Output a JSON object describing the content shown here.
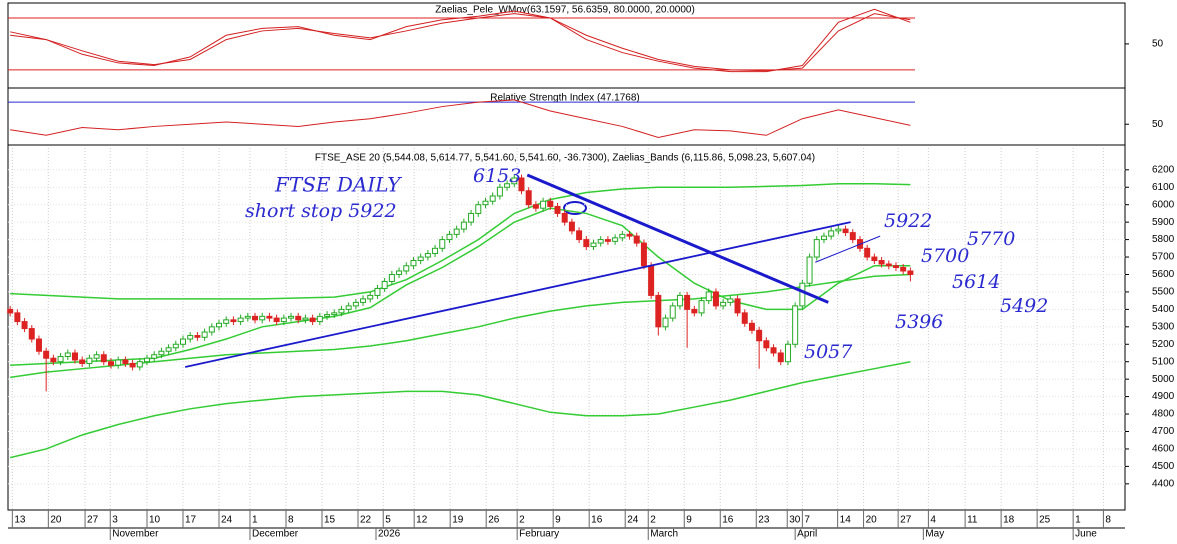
{
  "chart_data": [
    {
      "type": "line",
      "title": "Zaelias_Pele_WMov(63.1597, 56.6359, 80.0000, 20.0000)",
      "ylim": [
        -1,
        95
      ],
      "yticks": [
        50
      ],
      "levels": [
        80,
        20
      ],
      "level_color": "#dd2222",
      "x": [
        0,
        5,
        10,
        15,
        20,
        25,
        30,
        35,
        40,
        45,
        50,
        55,
        60,
        65,
        70,
        75,
        80,
        85,
        90,
        95,
        100,
        105,
        110,
        115,
        120,
        125
      ],
      "series": [
        {
          "color": "#d42020",
          "values": [
            64,
            55,
            38,
            28,
            25,
            35,
            60,
            68,
            70,
            60,
            55,
            70,
            78,
            82,
            88,
            80,
            55,
            40,
            30,
            22,
            18,
            18,
            25,
            75,
            90,
            75
          ]
        },
        {
          "color": "#d42020",
          "values": [
            60,
            55,
            42,
            30,
            26,
            32,
            55,
            65,
            68,
            62,
            57,
            65,
            74,
            80,
            85,
            80,
            60,
            45,
            32,
            24,
            20,
            19,
            22,
            65,
            85,
            78
          ]
        }
      ]
    },
    {
      "type": "line",
      "title": "Relative Strength Index (47.1768)",
      "ylim": [
        33,
        81
      ],
      "yticks": [
        50
      ],
      "levels": [
        70
      ],
      "level_color": "#2a2ad0",
      "x": [
        0,
        5,
        10,
        15,
        20,
        25,
        30,
        35,
        40,
        45,
        50,
        55,
        60,
        65,
        70,
        75,
        80,
        85,
        90,
        95,
        100,
        105,
        110,
        115,
        120,
        125
      ],
      "series": [
        {
          "color": "#d42020",
          "values": [
            45,
            40,
            47,
            45,
            48,
            50,
            52,
            50,
            48,
            52,
            55,
            60,
            66,
            70,
            72,
            62,
            55,
            48,
            38,
            45,
            44,
            40,
            55,
            63,
            56,
            49
          ]
        }
      ]
    },
    {
      "type": "candlestick",
      "title": "FTSE_ASE 20 (5,544.08, 5,614.77, 5,541.60, 5,541.60, -36.7300), Zaelias_Bands (6,115.86, 5,098.23, 5,607.04)",
      "up_color": "#22aa22",
      "down_color": "#dd2222",
      "grid": true,
      "ylim": [
        4250,
        6325
      ],
      "yticks": [
        4400,
        4500,
        4600,
        4700,
        4800,
        4900,
        5000,
        5100,
        5200,
        5300,
        5400,
        5500,
        5600,
        5700,
        5800,
        5900,
        6000,
        6100,
        6200
      ],
      "xlim": [
        -0.3,
        154.8
      ],
      "xticks": [
        {
          "value": 0.3,
          "label": "13"
        },
        {
          "value": 5.3,
          "label": "20"
        },
        {
          "value": 10.4,
          "label": "27"
        },
        {
          "value": 13.9,
          "label": "3"
        },
        {
          "value": 19,
          "label": "10"
        },
        {
          "value": 24,
          "label": "17"
        },
        {
          "value": 29,
          "label": "24"
        },
        {
          "value": 33.3,
          "label": "1"
        },
        {
          "value": 38.3,
          "label": "8"
        },
        {
          "value": 43.3,
          "label": "15"
        },
        {
          "value": 48.3,
          "label": "22"
        },
        {
          "value": 51.8,
          "label": "5"
        },
        {
          "value": 56.1,
          "label": "12"
        },
        {
          "value": 61.1,
          "label": "19"
        },
        {
          "value": 66.1,
          "label": "26"
        },
        {
          "value": 70.4,
          "label": "2"
        },
        {
          "value": 75.4,
          "label": "9"
        },
        {
          "value": 80.4,
          "label": "16"
        },
        {
          "value": 85.4,
          "label": "24"
        },
        {
          "value": 88.6,
          "label": "2"
        },
        {
          "value": 93.6,
          "label": "9"
        },
        {
          "value": 98.6,
          "label": "16"
        },
        {
          "value": 103.6,
          "label": "23"
        },
        {
          "value": 107.9,
          "label": "30"
        },
        {
          "value": 110,
          "label": "7"
        },
        {
          "value": 114.9,
          "label": "14"
        },
        {
          "value": 118.5,
          "label": "20"
        },
        {
          "value": 123.3,
          "label": "27"
        },
        {
          "value": 127.5,
          "label": "4"
        },
        {
          "value": 132.6,
          "label": "11"
        },
        {
          "value": 137.6,
          "label": "18"
        },
        {
          "value": 142.6,
          "label": "25"
        },
        {
          "value": 147.6,
          "label": "1"
        },
        {
          "value": 151.8,
          "label": "8"
        }
      ],
      "months": [
        {
          "value": 13.9,
          "label": "November"
        },
        {
          "value": 33.3,
          "label": "December"
        },
        {
          "value": 50.8,
          "label": "2026"
        },
        {
          "value": 70.4,
          "label": "February"
        },
        {
          "value": 88.6,
          "label": "March"
        },
        {
          "value": 109,
          "label": "April"
        },
        {
          "value": 126.8,
          "label": "May"
        },
        {
          "value": 147.6,
          "label": "June"
        }
      ],
      "open": [
        5400,
        5380,
        5330,
        5290,
        5230,
        5160,
        5120,
        5100,
        5130,
        5150,
        5110,
        5090,
        5120,
        5140,
        5100,
        5080,
        5110,
        5090,
        5070,
        5100,
        5120,
        5140,
        5160,
        5180,
        5200,
        5230,
        5250,
        5240,
        5270,
        5300,
        5320,
        5340,
        5330,
        5350,
        5360,
        5340,
        5360,
        5350,
        5330,
        5350,
        5360,
        5340,
        5350,
        5330,
        5360,
        5370,
        5380,
        5400,
        5420,
        5440,
        5460,
        5480,
        5520,
        5560,
        5600,
        5620,
        5650,
        5680,
        5700,
        5720,
        5750,
        5800,
        5830,
        5860,
        5900,
        5950,
        6000,
        6020,
        6050,
        6100,
        6120,
        6153,
        6080,
        6000,
        5980,
        6020,
        5990,
        5950,
        5900,
        5850,
        5800,
        5760,
        5780,
        5800,
        5790,
        5810,
        5830,
        5820,
        5780,
        5650,
        5480,
        5300,
        5350,
        5420,
        5480,
        5400,
        5380,
        5450,
        5500,
        5420,
        5440,
        5460,
        5380,
        5320,
        5280,
        5220,
        5180,
        5150,
        5100,
        5200,
        5420,
        5550,
        5700,
        5800,
        5820,
        5850,
        5860,
        5840,
        5800,
        5750,
        5700,
        5680,
        5660,
        5650,
        5640,
        5620
      ],
      "high": [
        5420,
        5400,
        5350,
        5310,
        5250,
        5180,
        5140,
        5150,
        5170,
        5170,
        5130,
        5140,
        5160,
        5160,
        5120,
        5130,
        5130,
        5110,
        5120,
        5140,
        5160,
        5180,
        5200,
        5220,
        5250,
        5270,
        5270,
        5290,
        5320,
        5340,
        5360,
        5360,
        5370,
        5380,
        5380,
        5380,
        5380,
        5370,
        5370,
        5380,
        5380,
        5370,
        5370,
        5380,
        5390,
        5400,
        5420,
        5440,
        5460,
        5480,
        5500,
        5540,
        5580,
        5620,
        5640,
        5670,
        5700,
        5720,
        5740,
        5770,
        5820,
        5850,
        5880,
        5920,
        5970,
        6020,
        6040,
        6070,
        6120,
        6140,
        6173,
        6173,
        6100,
        6020,
        6040,
        6040,
        6010,
        5970,
        5920,
        5870,
        5820,
        5800,
        5820,
        5820,
        5830,
        5850,
        5850,
        5840,
        5800,
        5670,
        5500,
        5370,
        5440,
        5500,
        5500,
        5420,
        5470,
        5520,
        5520,
        5460,
        5480,
        5480,
        5400,
        5340,
        5300,
        5240,
        5200,
        5170,
        5220,
        5440,
        5570,
        5720,
        5820,
        5840,
        5870,
        5880,
        5880,
        5860,
        5820,
        5770,
        5720,
        5700,
        5680,
        5670,
        5660,
        5640
      ],
      "low": [
        5360,
        5310,
        5270,
        5210,
        5140,
        4930,
        5080,
        5080,
        5110,
        5090,
        5070,
        5070,
        5100,
        5080,
        5060,
        5060,
        5070,
        5050,
        5050,
        5080,
        5100,
        5120,
        5140,
        5160,
        5180,
        5210,
        5220,
        5220,
        5250,
        5280,
        5300,
        5310,
        5310,
        5330,
        5320,
        5320,
        5330,
        5310,
        5310,
        5330,
        5320,
        5320,
        5310,
        5310,
        5340,
        5350,
        5360,
        5380,
        5400,
        5420,
        5440,
        5460,
        5500,
        5540,
        5580,
        5600,
        5630,
        5660,
        5680,
        5700,
        5730,
        5780,
        5810,
        5840,
        5880,
        5930,
        5980,
        6000,
        6030,
        6080,
        6100,
        6060,
        5980,
        5960,
        5960,
        5970,
        5930,
        5880,
        5830,
        5780,
        5740,
        5740,
        5760,
        5770,
        5770,
        5790,
        5800,
        5760,
        5630,
        5460,
        5250,
        5280,
        5330,
        5400,
        5180,
        5360,
        5360,
        5430,
        5400,
        5400,
        5420,
        5360,
        5300,
        5260,
        5060,
        5160,
        5130,
        5080,
        5080,
        5180,
        5400,
        5530,
        5680,
        5780,
        5800,
        5830,
        5820,
        5780,
        5730,
        5680,
        5660,
        5640,
        5630,
        5620,
        5600,
        5560
      ],
      "close": [
        5380,
        5330,
        5290,
        5230,
        5160,
        5120,
        5100,
        5130,
        5150,
        5110,
        5090,
        5120,
        5140,
        5100,
        5080,
        5110,
        5090,
        5070,
        5100,
        5120,
        5140,
        5160,
        5180,
        5200,
        5230,
        5250,
        5240,
        5270,
        5300,
        5320,
        5340,
        5330,
        5350,
        5360,
        5340,
        5360,
        5350,
        5330,
        5350,
        5360,
        5340,
        5350,
        5330,
        5360,
        5370,
        5380,
        5400,
        5420,
        5440,
        5460,
        5480,
        5520,
        5560,
        5600,
        5620,
        5650,
        5680,
        5700,
        5720,
        5750,
        5800,
        5830,
        5860,
        5900,
        5950,
        6000,
        6020,
        6050,
        6100,
        6120,
        6153,
        6080,
        6000,
        5980,
        6020,
        5990,
        5950,
        5900,
        5850,
        5800,
        5760,
        5780,
        5800,
        5790,
        5810,
        5830,
        5820,
        5780,
        5650,
        5480,
        5300,
        5350,
        5420,
        5480,
        5400,
        5380,
        5450,
        5500,
        5420,
        5440,
        5460,
        5380,
        5320,
        5280,
        5220,
        5180,
        5150,
        5100,
        5200,
        5420,
        5550,
        5700,
        5800,
        5820,
        5850,
        5860,
        5840,
        5800,
        5750,
        5700,
        5680,
        5660,
        5650,
        5640,
        5620,
        5600
      ],
      "line_x": [
        0,
        5,
        10,
        15,
        20,
        25,
        30,
        35,
        40,
        45,
        50,
        55,
        60,
        65,
        70,
        75,
        80,
        85,
        90,
        95,
        100,
        105,
        110,
        115,
        120,
        125
      ],
      "lines": [
        {
          "color": "#33cc33",
          "values": [
            5490,
            5480,
            5470,
            5460,
            5460,
            5460,
            5460,
            5460,
            5465,
            5470,
            5500,
            5570,
            5680,
            5800,
            5950,
            6030,
            6070,
            6090,
            6100,
            6100,
            6100,
            6105,
            6110,
            6120,
            6120,
            6115
          ]
        },
        {
          "color": "#33cc33",
          "values": [
            5010,
            5040,
            5060,
            5080,
            5100,
            5120,
            5140,
            5150,
            5160,
            5170,
            5190,
            5220,
            5260,
            5300,
            5350,
            5390,
            5420,
            5440,
            5450,
            5460,
            5480,
            5500,
            5530,
            5560,
            5590,
            5600
          ]
        },
        {
          "color": "#33cc33",
          "values": [
            4550,
            4600,
            4680,
            4740,
            4790,
            4830,
            4860,
            4880,
            4900,
            4910,
            4920,
            4930,
            4930,
            4910,
            4860,
            4810,
            4790,
            4790,
            4800,
            4840,
            4880,
            4930,
            4980,
            5020,
            5060,
            5100
          ]
        },
        {
          "color": "#33cc33",
          "values": [
            5080,
            5090,
            5100,
            5110,
            5120,
            5170,
            5230,
            5300,
            5330,
            5360,
            5410,
            5540,
            5640,
            5760,
            5900,
            5980,
            5950,
            5880,
            5700,
            5550,
            5450,
            5400,
            5400,
            5550,
            5650,
            5650
          ]
        }
      ],
      "trendlines": [
        {
          "color": "#1a1acc",
          "x": [
            24.3,
            116.7
          ],
          "y": [
            5070,
            5900
          ]
        },
        {
          "color": "#1a1acc",
          "x": [
            71.8,
            113.6
          ],
          "y": [
            6170,
            5440
          ]
        },
        {
          "color": "#1a1acc",
          "x": [
            111.8,
            120.8
          ],
          "y": [
            5670,
            5820
          ]
        }
      ],
      "annotations": [
        "FTSE DAILY",
        "short stop 5922",
        "6153",
        "5922",
        "5700",
        "5770",
        "5614",
        "5492",
        "5396",
        "5057"
      ]
    }
  ]
}
